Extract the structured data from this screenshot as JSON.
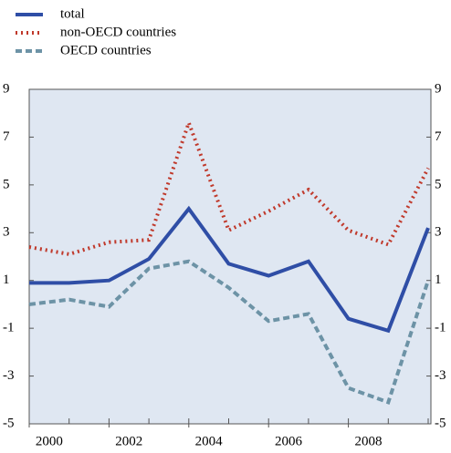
{
  "chart_data": {
    "type": "line",
    "x": [
      2000,
      2001,
      2002,
      2003,
      2004,
      2005,
      2006,
      2007,
      2008,
      2009,
      2010
    ],
    "series": [
      {
        "name": "total",
        "color": "#2f4ea6",
        "dash": "solid",
        "values": [
          0.9,
          0.9,
          1.0,
          1.9,
          4.0,
          1.7,
          1.2,
          1.8,
          -0.6,
          -1.1,
          3.2
        ]
      },
      {
        "name": "non-OECD countries",
        "color": "#c0392b",
        "dash": "dotted",
        "values": [
          2.4,
          2.1,
          2.6,
          2.7,
          7.6,
          3.1,
          3.9,
          4.8,
          3.1,
          2.5,
          5.7
        ]
      },
      {
        "name": "OECD countries",
        "color": "#6d93a6",
        "dash": "dashed",
        "values": [
          0.0,
          0.2,
          -0.1,
          1.5,
          1.8,
          0.7,
          -0.7,
          -0.4,
          -3.5,
          -4.1,
          1.0
        ]
      }
    ],
    "xlim": [
      2000,
      2010
    ],
    "xticks": [
      2000,
      2002,
      2004,
      2006,
      2008
    ],
    "ylim": [
      -5,
      9
    ],
    "yticks": [
      -5,
      -3,
      -1,
      1,
      3,
      5,
      7,
      9
    ],
    "legend": "top-left"
  }
}
